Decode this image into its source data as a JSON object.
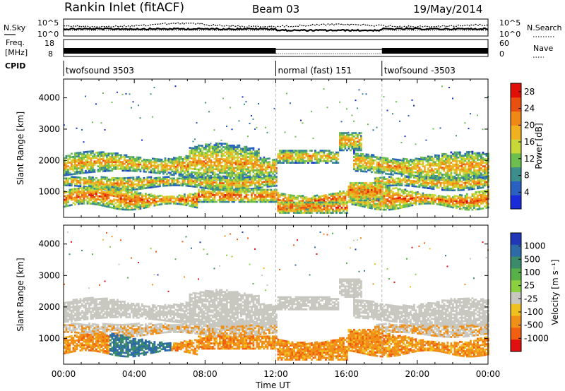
{
  "header": {
    "radar_title": "Rankin Inlet (fitACF)",
    "beam": "Beam 03",
    "date": "19/May/2014"
  },
  "top_panels": {
    "nsky_label": "N.Sky",
    "nsearch_label": "N.Search",
    "nsky_ticks": [
      "10^5",
      "10^0"
    ],
    "nsearch_ticks": [
      "10^5",
      "10^0"
    ],
    "freq_label_line1": "Freq.",
    "freq_label_line2": "[MHz]",
    "freq_ticks": [
      "18",
      "8"
    ],
    "nave_label": "Nave",
    "nave_ticks": [
      "60",
      "0"
    ],
    "cpid_label": "CPID",
    "cpid_segments": [
      {
        "label": "twofsound 3503",
        "start_hour": 0,
        "end_hour": 12
      },
      {
        "label": "normal (fast) 151",
        "start_hour": 12,
        "end_hour": 18
      },
      {
        "label": "twofsound -3503",
        "start_hour": 18,
        "end_hour": 24
      }
    ]
  },
  "x_axis": {
    "label": "Time UT",
    "ticks": [
      "00:00",
      "04:00",
      "08:00",
      "12:00",
      "16:00",
      "20:00",
      "00:00"
    ],
    "range_hours": [
      0,
      24
    ]
  },
  "chart_data": [
    {
      "type": "heatmap",
      "name": "power",
      "ylabel": "Slant Range [km]",
      "yticks": [
        1000,
        2000,
        3000,
        4000
      ],
      "ylim": [
        180,
        4600
      ],
      "colorbar_label": "Power [dB]",
      "colorbar_ticks": [
        4,
        8,
        12,
        16,
        20,
        24,
        28
      ],
      "colorbar_range": [
        0,
        30
      ],
      "colorbar_colors": [
        "#1a2bd8",
        "#2a60c0",
        "#3c8e8c",
        "#6cbf4e",
        "#c8d838",
        "#f0b020",
        "#f08818",
        "#e85010",
        "#e01008"
      ],
      "colorbar_position": "right"
    },
    {
      "type": "heatmap",
      "name": "velocity",
      "ylabel": "Slant Range [km]",
      "yticks": [
        1000,
        2000,
        3000,
        4000
      ],
      "ylim": [
        180,
        4600
      ],
      "colorbar_label": "Velocity [m s⁻¹]",
      "colorbar_ticks": [
        "1000",
        "500",
        "100",
        "25",
        "-25",
        "-100",
        "-500",
        "-1000"
      ],
      "colorbar_colors": [
        "#2038b8",
        "#2c6aa8",
        "#3b8a6a",
        "#58b048",
        "#8cd040",
        "#c8c8c0",
        "#f0c020",
        "#f09018",
        "#f06010",
        "#e01010"
      ],
      "ground_scatter_color": "#c8c8c0",
      "colorbar_position": "right"
    }
  ],
  "legend": {
    "velocity_unit_text": "Velocity [m s",
    "velocity_unit_sup": "-1",
    "velocity_unit_end": "]"
  }
}
